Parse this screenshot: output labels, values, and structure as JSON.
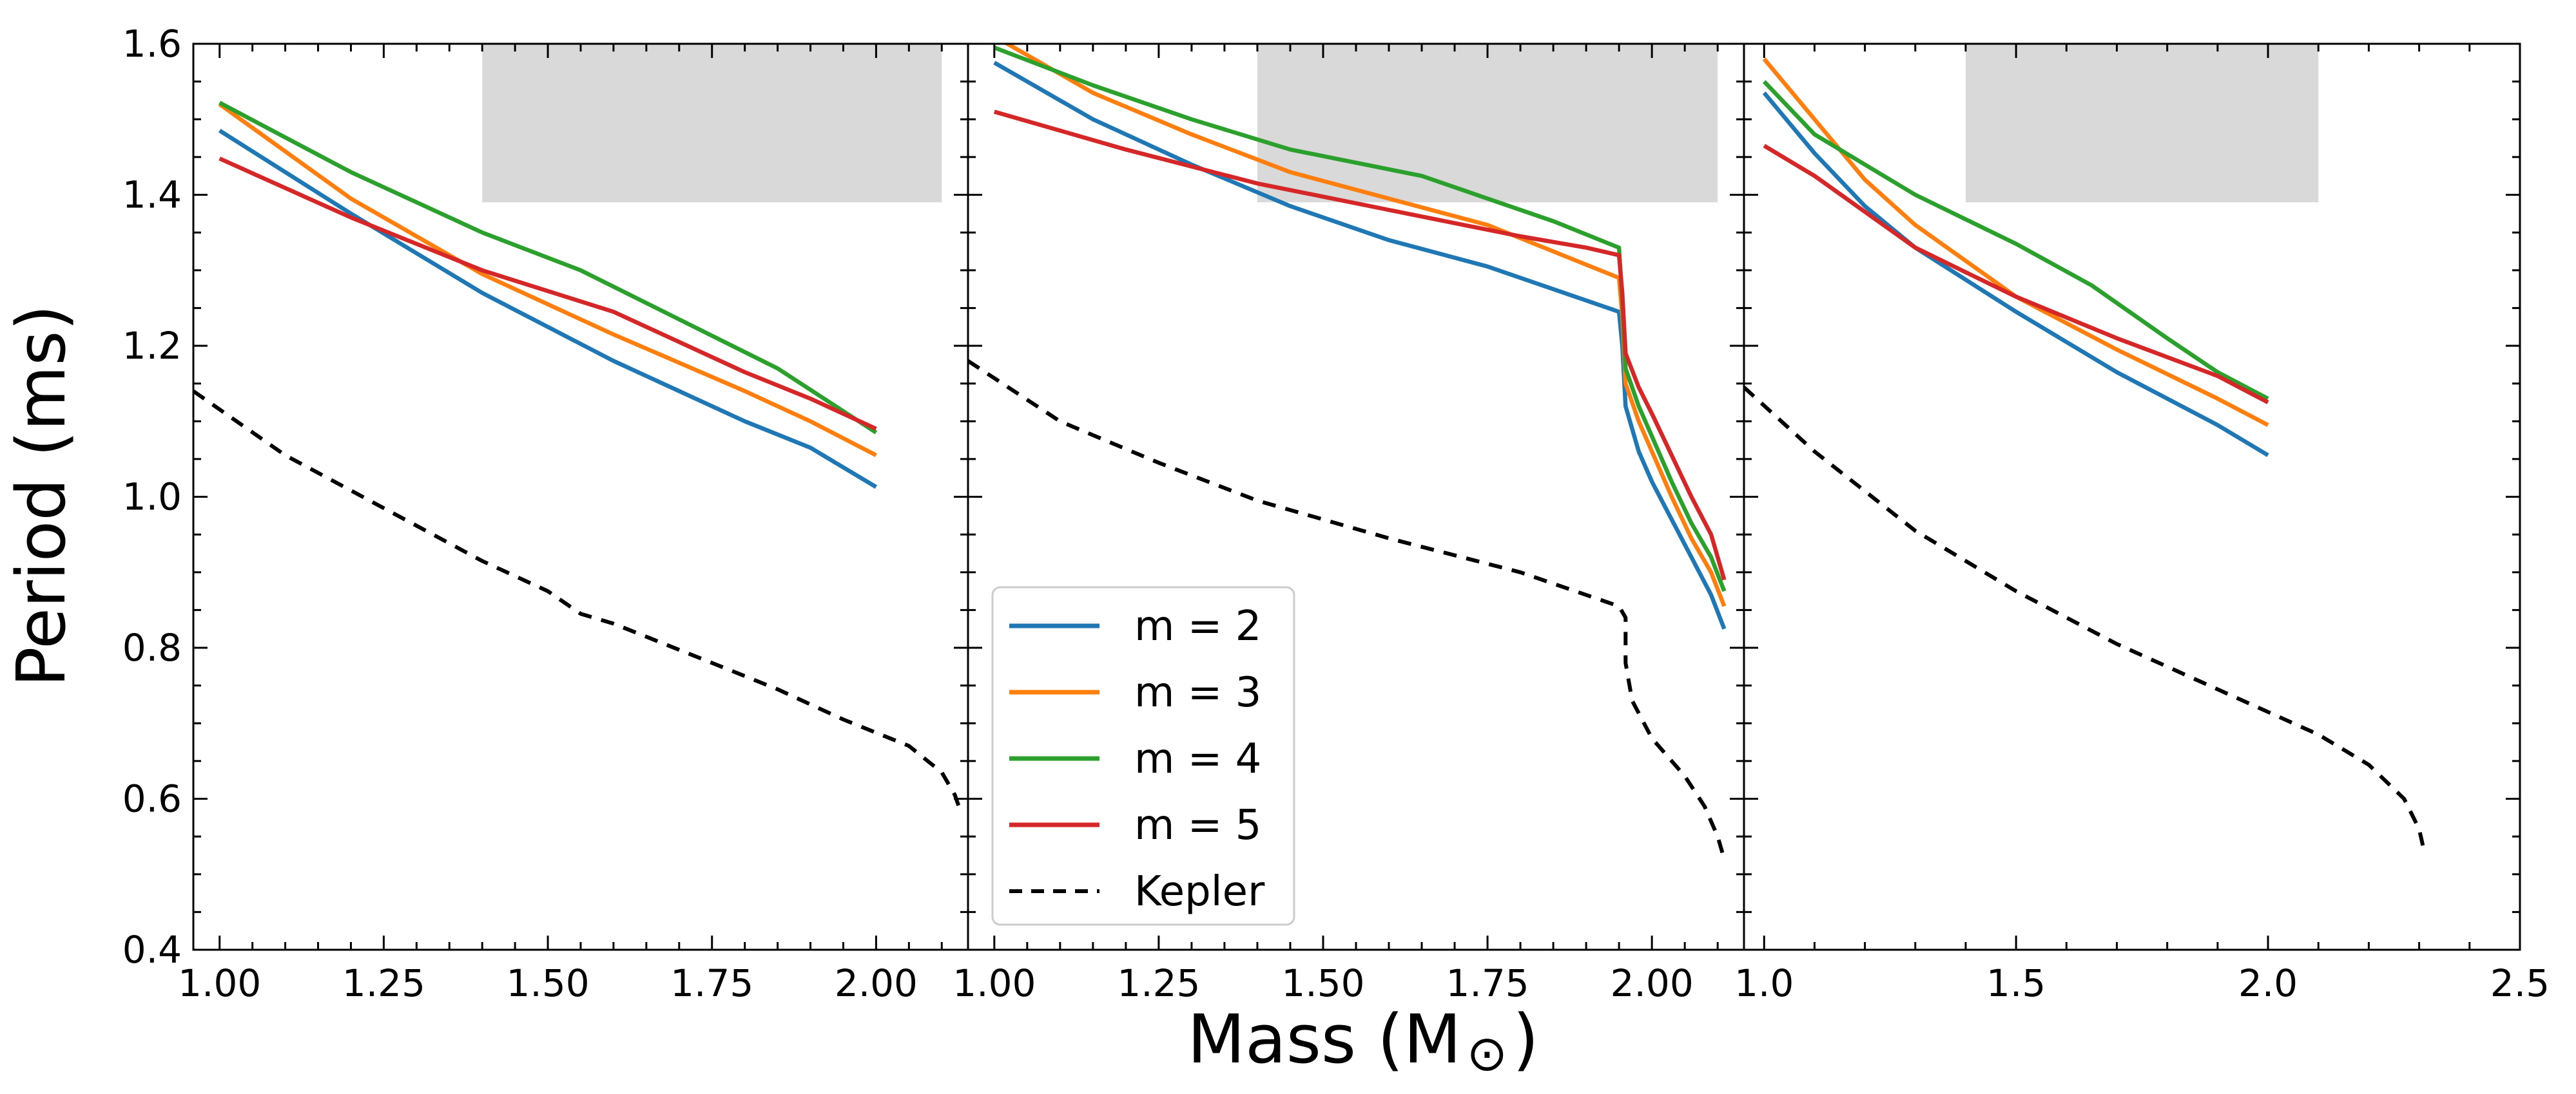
{
  "figure": {
    "ylabel": "Period (ms)",
    "xlabel_prefix": "Mass (M",
    "xlabel_symbol": "⊙",
    "xlabel_suffix": ")"
  },
  "chart_data": [
    {
      "type": "line",
      "panel": "left",
      "xlim": [
        0.96,
        2.14
      ],
      "ylim": [
        0.4,
        1.6
      ],
      "xticks": [
        1.0,
        1.25,
        1.5,
        1.75,
        2.0
      ],
      "xtick_labels": [
        "1.00",
        "1.25",
        "1.50",
        "1.75",
        "2.00"
      ],
      "yticks": [
        0.4,
        0.6,
        0.8,
        1.0,
        1.2,
        1.4,
        1.6
      ],
      "ytick_labels": [
        "0.4",
        "0.6",
        "0.8",
        "1.0",
        "1.2",
        "1.4",
        "1.6"
      ],
      "show_ytick_labels": true,
      "shaded_region": {
        "x": [
          1.4,
          2.1
        ],
        "y": [
          1.39,
          1.6
        ]
      },
      "series": [
        {
          "name": "m = 2",
          "color": "#1f77b4",
          "dash": "",
          "points": [
            [
              1.0,
              1.485
            ],
            [
              1.2,
              1.375
            ],
            [
              1.4,
              1.27
            ],
            [
              1.6,
              1.18
            ],
            [
              1.8,
              1.1
            ],
            [
              1.9,
              1.065
            ],
            [
              2.0,
              1.013
            ]
          ]
        },
        {
          "name": "m = 3",
          "color": "#ff7f0e",
          "dash": "",
          "points": [
            [
              1.0,
              1.52
            ],
            [
              1.2,
              1.395
            ],
            [
              1.4,
              1.295
            ],
            [
              1.6,
              1.215
            ],
            [
              1.8,
              1.14
            ],
            [
              1.9,
              1.1
            ],
            [
              2.0,
              1.055
            ]
          ]
        },
        {
          "name": "m = 4",
          "color": "#2ca02c",
          "dash": "",
          "points": [
            [
              1.0,
              1.522
            ],
            [
              1.2,
              1.43
            ],
            [
              1.4,
              1.35
            ],
            [
              1.55,
              1.3
            ],
            [
              1.7,
              1.235
            ],
            [
              1.85,
              1.17
            ],
            [
              2.0,
              1.085
            ]
          ]
        },
        {
          "name": "m = 5",
          "color": "#d62728",
          "dash": "",
          "points": [
            [
              1.0,
              1.448
            ],
            [
              1.2,
              1.37
            ],
            [
              1.4,
              1.3
            ],
            [
              1.6,
              1.245
            ],
            [
              1.8,
              1.165
            ],
            [
              1.9,
              1.13
            ],
            [
              2.0,
              1.09
            ]
          ]
        },
        {
          "name": "Kepler",
          "color": "#000000",
          "dash": "8 6",
          "points": [
            [
              0.96,
              1.14
            ],
            [
              1.1,
              1.055
            ],
            [
              1.25,
              0.985
            ],
            [
              1.4,
              0.915
            ],
            [
              1.5,
              0.875
            ],
            [
              1.55,
              0.845
            ],
            [
              1.6,
              0.832
            ],
            [
              1.75,
              0.78
            ],
            [
              1.85,
              0.745
            ],
            [
              1.95,
              0.705
            ],
            [
              2.05,
              0.67
            ],
            [
              2.1,
              0.635
            ],
            [
              2.12,
              0.605
            ],
            [
              2.13,
              0.58
            ]
          ]
        }
      ]
    },
    {
      "type": "line",
      "panel": "middle",
      "xlim": [
        0.96,
        2.14
      ],
      "ylim": [
        0.4,
        1.6
      ],
      "xticks": [
        1.0,
        1.25,
        1.5,
        1.75,
        2.0
      ],
      "xtick_labels": [
        "1.00",
        "1.25",
        "1.50",
        "1.75",
        "2.00"
      ],
      "yticks": [
        0.4,
        0.6,
        0.8,
        1.0,
        1.2,
        1.4,
        1.6
      ],
      "show_ytick_labels": false,
      "shaded_region": {
        "x": [
          1.4,
          2.1
        ],
        "y": [
          1.39,
          1.6
        ]
      },
      "series": [
        {
          "name": "m = 2",
          "color": "#1f77b4",
          "dash": "",
          "points": [
            [
              1.0,
              1.575
            ],
            [
              1.15,
              1.5
            ],
            [
              1.3,
              1.44
            ],
            [
              1.45,
              1.385
            ],
            [
              1.6,
              1.34
            ],
            [
              1.75,
              1.305
            ],
            [
              1.85,
              1.275
            ],
            [
              1.95,
              1.245
            ],
            [
              1.955,
              1.2
            ],
            [
              1.96,
              1.12
            ],
            [
              1.98,
              1.06
            ],
            [
              2.0,
              1.02
            ],
            [
              2.03,
              0.97
            ],
            [
              2.06,
              0.92
            ],
            [
              2.09,
              0.87
            ],
            [
              2.11,
              0.825
            ]
          ]
        },
        {
          "name": "m = 3",
          "color": "#ff7f0e",
          "dash": "",
          "points": [
            [
              1.0,
              1.61
            ],
            [
              1.15,
              1.535
            ],
            [
              1.3,
              1.48
            ],
            [
              1.45,
              1.43
            ],
            [
              1.6,
              1.395
            ],
            [
              1.75,
              1.36
            ],
            [
              1.85,
              1.325
            ],
            [
              1.95,
              1.29
            ],
            [
              1.955,
              1.24
            ],
            [
              1.96,
              1.15
            ],
            [
              1.98,
              1.1
            ],
            [
              2.0,
              1.06
            ],
            [
              2.03,
              1.0
            ],
            [
              2.06,
              0.945
            ],
            [
              2.09,
              0.9
            ],
            [
              2.11,
              0.855
            ]
          ]
        },
        {
          "name": "m = 4",
          "color": "#2ca02c",
          "dash": "",
          "points": [
            [
              1.0,
              1.595
            ],
            [
              1.15,
              1.545
            ],
            [
              1.3,
              1.5
            ],
            [
              1.45,
              1.46
            ],
            [
              1.65,
              1.425
            ],
            [
              1.85,
              1.365
            ],
            [
              1.95,
              1.33
            ],
            [
              1.955,
              1.26
            ],
            [
              1.96,
              1.17
            ],
            [
              1.98,
              1.12
            ],
            [
              2.0,
              1.08
            ],
            [
              2.03,
              1.02
            ],
            [
              2.06,
              0.965
            ],
            [
              2.09,
              0.92
            ],
            [
              2.11,
              0.875
            ]
          ]
        },
        {
          "name": "m = 5",
          "color": "#d62728",
          "dash": "",
          "points": [
            [
              1.0,
              1.51
            ],
            [
              1.2,
              1.46
            ],
            [
              1.4,
              1.415
            ],
            [
              1.6,
              1.38
            ],
            [
              1.8,
              1.345
            ],
            [
              1.9,
              1.33
            ],
            [
              1.95,
              1.32
            ],
            [
              1.955,
              1.27
            ],
            [
              1.96,
              1.19
            ],
            [
              1.98,
              1.145
            ],
            [
              2.0,
              1.11
            ],
            [
              2.03,
              1.055
            ],
            [
              2.06,
              1.0
            ],
            [
              2.09,
              0.95
            ],
            [
              2.11,
              0.89
            ]
          ]
        },
        {
          "name": "Kepler",
          "color": "#000000",
          "dash": "8 6",
          "points": [
            [
              0.96,
              1.18
            ],
            [
              1.1,
              1.1
            ],
            [
              1.25,
              1.045
            ],
            [
              1.4,
              0.995
            ],
            [
              1.6,
              0.945
            ],
            [
              1.8,
              0.9
            ],
            [
              1.9,
              0.87
            ],
            [
              1.95,
              0.855
            ],
            [
              1.96,
              0.84
            ],
            [
              1.96,
              0.78
            ],
            [
              1.97,
              0.73
            ],
            [
              2.0,
              0.68
            ],
            [
              2.05,
              0.63
            ],
            [
              2.08,
              0.59
            ],
            [
              2.1,
              0.55
            ],
            [
              2.11,
              0.52
            ]
          ]
        }
      ]
    },
    {
      "type": "line",
      "panel": "right",
      "xlim": [
        0.96,
        2.5
      ],
      "ylim": [
        0.4,
        1.6
      ],
      "xticks": [
        1.0,
        1.5,
        2.0,
        2.5
      ],
      "xtick_labels": [
        "1.0",
        "1.5",
        "2.0",
        "2.5"
      ],
      "yticks": [
        0.4,
        0.6,
        0.8,
        1.0,
        1.2,
        1.4,
        1.6
      ],
      "show_ytick_labels": false,
      "shaded_region": {
        "x": [
          1.4,
          2.1
        ],
        "y": [
          1.39,
          1.6
        ]
      },
      "series": [
        {
          "name": "m = 2",
          "color": "#1f77b4",
          "dash": "",
          "points": [
            [
              1.0,
              1.535
            ],
            [
              1.1,
              1.455
            ],
            [
              1.2,
              1.385
            ],
            [
              1.3,
              1.33
            ],
            [
              1.5,
              1.245
            ],
            [
              1.7,
              1.165
            ],
            [
              1.9,
              1.095
            ],
            [
              2.0,
              1.055
            ]
          ]
        },
        {
          "name": "m = 3",
          "color": "#ff7f0e",
          "dash": "",
          "points": [
            [
              1.0,
              1.58
            ],
            [
              1.1,
              1.5
            ],
            [
              1.2,
              1.42
            ],
            [
              1.3,
              1.36
            ],
            [
              1.5,
              1.265
            ],
            [
              1.7,
              1.195
            ],
            [
              1.9,
              1.13
            ],
            [
              2.0,
              1.095
            ]
          ]
        },
        {
          "name": "m = 4",
          "color": "#2ca02c",
          "dash": "",
          "points": [
            [
              1.0,
              1.55
            ],
            [
              1.1,
              1.48
            ],
            [
              1.3,
              1.4
            ],
            [
              1.5,
              1.335
            ],
            [
              1.65,
              1.28
            ],
            [
              1.8,
              1.21
            ],
            [
              1.9,
              1.165
            ],
            [
              2.0,
              1.13
            ]
          ]
        },
        {
          "name": "m = 5",
          "color": "#d62728",
          "dash": "",
          "points": [
            [
              1.0,
              1.465
            ],
            [
              1.1,
              1.425
            ],
            [
              1.3,
              1.33
            ],
            [
              1.5,
              1.265
            ],
            [
              1.7,
              1.21
            ],
            [
              1.9,
              1.16
            ],
            [
              2.0,
              1.125
            ]
          ]
        },
        {
          "name": "Kepler",
          "color": "#000000",
          "dash": "8 6",
          "points": [
            [
              0.96,
              1.145
            ],
            [
              1.1,
              1.06
            ],
            [
              1.3,
              0.955
            ],
            [
              1.5,
              0.875
            ],
            [
              1.7,
              0.805
            ],
            [
              1.9,
              0.745
            ],
            [
              2.1,
              0.685
            ],
            [
              2.2,
              0.645
            ],
            [
              2.27,
              0.6
            ],
            [
              2.3,
              0.56
            ],
            [
              2.31,
              0.53
            ]
          ]
        }
      ]
    }
  ],
  "legend": {
    "entries": [
      {
        "label": "m = 2",
        "color": "#1f77b4",
        "dash": ""
      },
      {
        "label": "m = 3",
        "color": "#ff7f0e",
        "dash": ""
      },
      {
        "label": "m = 4",
        "color": "#2ca02c",
        "dash": ""
      },
      {
        "label": "m = 5",
        "color": "#d62728",
        "dash": ""
      },
      {
        "label": "Kepler",
        "color": "#000000",
        "dash": "8 6"
      }
    ]
  }
}
